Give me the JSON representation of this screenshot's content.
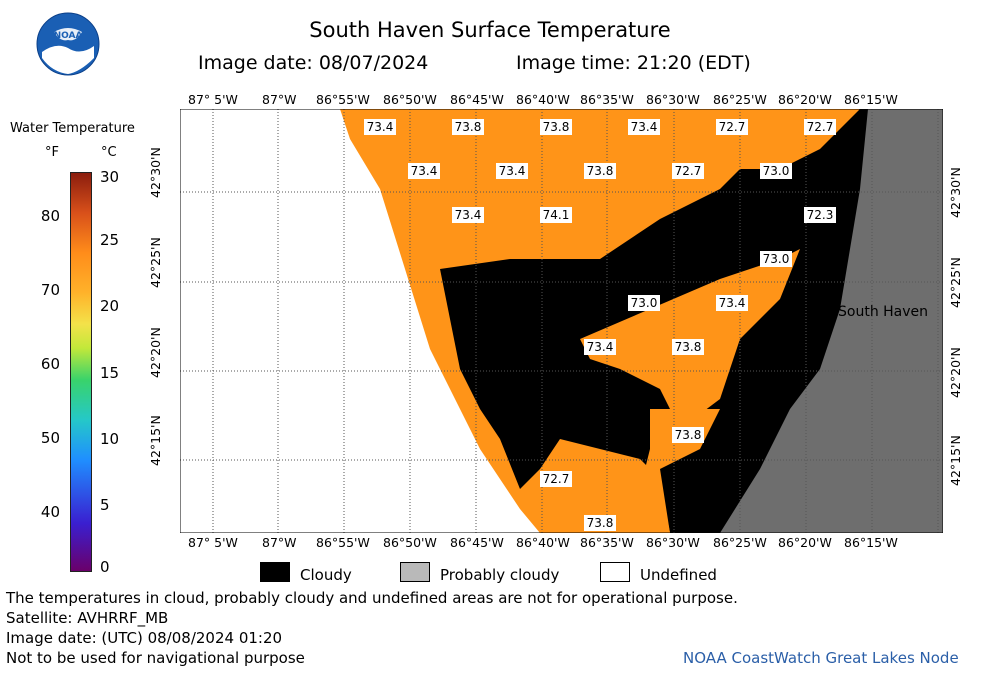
{
  "title": "South Haven Surface Temperature",
  "image_date": "Image date: 08/07/2024",
  "image_time": "Image time: 21:20 (EDT)",
  "logo_text": "NOAA",
  "legend": {
    "title": "Water Temperature",
    "unit_f": "°F",
    "unit_c": "°C",
    "ticks_f": [
      "80",
      "70",
      "60",
      "50",
      "40"
    ],
    "ticks_c": [
      "30",
      "25",
      "20",
      "15",
      "10",
      "5",
      "0"
    ]
  },
  "longitudes": [
    "87° 5'W",
    "87°W",
    "86°55'W",
    "86°50'W",
    "86°45'W",
    "86°40'W",
    "86°35'W",
    "86°30'W",
    "86°25'W",
    "86°20'W",
    "86°15'W"
  ],
  "latitudes": [
    "42°30'N",
    "42°25'N",
    "42°20'N",
    "42°15'N"
  ],
  "place_label": "South Haven",
  "temp_labels": [
    "73.4",
    "73.8",
    "73.8",
    "73.4",
    "72.7",
    "72.7",
    "73.4",
    "73.4",
    "73.8",
    "72.7",
    "73.0",
    "73.4",
    "74.1",
    "72.3",
    "73.0",
    "73.0",
    "73.4",
    "73.4",
    "73.8",
    "73.8",
    "72.7",
    "73.8"
  ],
  "key": {
    "cloudy": "Cloudy",
    "probably_cloudy": "Probably cloudy",
    "undefined": "Undefined"
  },
  "footer": {
    "disclaimer": "The temperatures in cloud, probably cloudy and undefined areas are not for operational purpose.",
    "satellite": "Satellite: AVHRRF_MB",
    "utc_date": "Image date: (UTC) 08/08/2024  01:20",
    "nav_warning": "Not to be used for navigational purpose",
    "credit": "NOAA CoastWatch Great Lakes Node"
  },
  "colors": {
    "water": "#ff9418",
    "cloud": "#000000",
    "land": "#6e6e6e",
    "undefined": "#ffffff",
    "grid": "#555555",
    "credit": "#2b5fa8"
  }
}
